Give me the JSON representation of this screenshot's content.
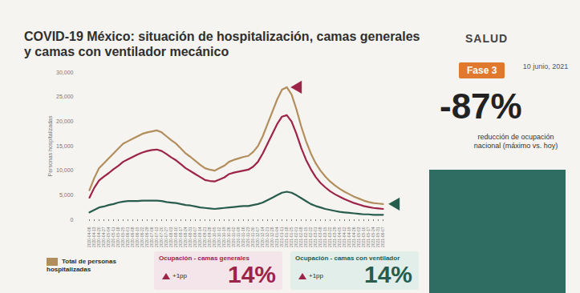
{
  "chart_data": {
    "type": "line",
    "title": "COVID-19 México: situación de hospitalización, camas generales y camas con ventilador mecánico",
    "y_label": "Personas hospitalizadas",
    "categories": [
      "2020-04-06",
      "2020-04-13",
      "2020-04-20",
      "2020-04-27",
      "2020-05-04",
      "2020-05-11",
      "2020-05-18",
      "2020-05-25",
      "2020-06-01",
      "2020-06-08",
      "2020-06-15",
      "2020-06-22",
      "2020-06-29",
      "2020-07-06",
      "2020-07-13",
      "2020-07-20",
      "2020-07-27",
      "2020-08-03",
      "2020-08-10",
      "2020-08-17",
      "2020-08-24",
      "2020-08-31",
      "2020-09-07",
      "2020-09-14",
      "2020-09-21",
      "2020-09-28",
      "2020-10-05",
      "2020-10-12",
      "2020-10-19",
      "2020-10-26",
      "2020-11-02",
      "2020-11-09",
      "2020-11-16",
      "2020-11-23",
      "2020-11-30",
      "2020-12-07",
      "2020-12-14",
      "2020-12-21",
      "2020-12-28",
      "2021-01-04",
      "2021-01-11",
      "2021-01-18",
      "2021-01-25",
      "2021-02-01",
      "2021-02-08",
      "2021-02-15",
      "2021-02-22",
      "2021-03-01",
      "2021-03-08",
      "2021-03-15",
      "2021-03-22",
      "2021-03-29",
      "2021-04-05",
      "2021-04-12",
      "2021-04-19",
      "2021-04-26",
      "2021-05-03",
      "2021-05-10",
      "2021-05-17",
      "2021-05-24",
      "2021-05-31",
      "2021-06-07"
    ],
    "series": [
      {
        "name": "Total de personas hospitalizadas",
        "color": "#b38e5d",
        "values": [
          6000,
          8500,
          10500,
          11500,
          12500,
          13500,
          14500,
          15500,
          16000,
          16500,
          17000,
          17500,
          17800,
          18000,
          18200,
          17800,
          17000,
          16200,
          15500,
          14500,
          13500,
          12800,
          12000,
          11200,
          10500,
          10200,
          10000,
          10500,
          11000,
          11800,
          12200,
          12500,
          12800,
          13000,
          13800,
          15000,
          17000,
          19500,
          22000,
          24500,
          26500,
          27000,
          25500,
          22500,
          19000,
          16000,
          13500,
          11500,
          10000,
          8800,
          7800,
          7000,
          6300,
          5700,
          5200,
          4700,
          4300,
          3900,
          3600,
          3400,
          3300,
          3200
        ]
      },
      {
        "name": "Ocupación - camas generales",
        "color": "#9d2449",
        "values": [
          4500,
          6500,
          8000,
          8800,
          9500,
          10300,
          11000,
          11800,
          12300,
          12800,
          13300,
          13700,
          14000,
          14200,
          14300,
          14000,
          13400,
          12700,
          12100,
          11300,
          10500,
          9900,
          9300,
          8700,
          8100,
          7900,
          7800,
          8200,
          8600,
          9300,
          9600,
          9800,
          10000,
          10200,
          10800,
          11800,
          13500,
          15500,
          17500,
          19500,
          21000,
          21300,
          20000,
          17500,
          14600,
          12200,
          10300,
          8700,
          7500,
          6600,
          5800,
          5200,
          4700,
          4200,
          3800,
          3400,
          3100,
          2800,
          2600,
          2400,
          2300,
          2200
        ]
      },
      {
        "name": "Ocupación - camas con ventilador",
        "color": "#285c4d",
        "values": [
          1500,
          2000,
          2500,
          2700,
          3000,
          3200,
          3500,
          3700,
          3800,
          3800,
          3800,
          3900,
          3900,
          3900,
          3900,
          3800,
          3600,
          3500,
          3400,
          3200,
          3000,
          2900,
          2700,
          2500,
          2400,
          2300,
          2200,
          2300,
          2400,
          2500,
          2600,
          2700,
          2800,
          2800,
          3000,
          3200,
          3500,
          4000,
          4500,
          5000,
          5500,
          5700,
          5500,
          5000,
          4400,
          3800,
          3200,
          2800,
          2500,
          2200,
          2000,
          1800,
          1600,
          1500,
          1400,
          1300,
          1200,
          1100,
          1100,
          1000,
          1000,
          1000
        ]
      }
    ],
    "ylim": [
      0,
      30000
    ],
    "yticks": [
      0,
      {
        "value": 5000,
        "label": "5,000"
      },
      {
        "value": 10000,
        "label": "10,000"
      },
      {
        "value": 15000,
        "label": "15,000"
      },
      {
        "value": 20000,
        "label": "20,000"
      },
      {
        "value": 25000,
        "label": "25,000"
      },
      {
        "value": 30000,
        "label": "30,000"
      }
    ]
  },
  "header": {
    "logo": "SALUD",
    "phase": "Fase 3",
    "date": "10 junio, 2021"
  },
  "headline": {
    "value": -87,
    "label": "-87%",
    "text": "reducción de ocupación nacional (máximo vs. hoy)"
  },
  "occupancy": [
    null,
    {
      "change": "+1pp",
      "value": 14,
      "label": "14%"
    },
    {
      "change": "+1pp",
      "value": 14,
      "label": "14%"
    }
  ]
}
